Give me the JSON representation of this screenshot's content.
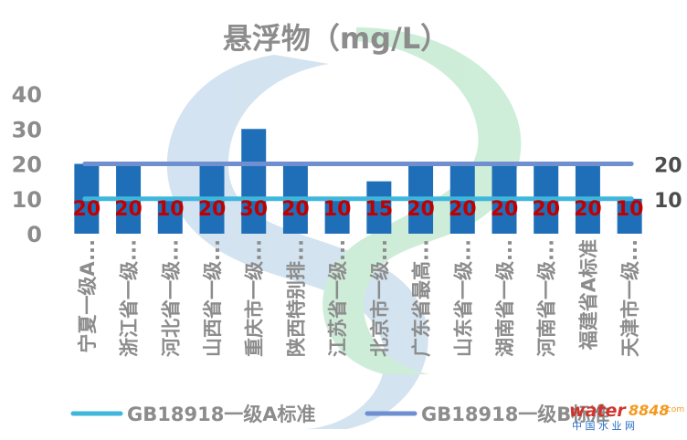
{
  "chart_data": {
    "type": "bar",
    "title": "悬浮物（mg/L）",
    "categories": [
      "宁夏一级A...",
      "浙江省一级...",
      "河北省一级...",
      "山西省一级...",
      "重庆市一级...",
      "陕西特别排...",
      "江苏省一级...",
      "北京市一级...",
      "广东省最高...",
      "山东省一级...",
      "湖南省一级...",
      "河南省一级...",
      "福建省A标准",
      "天津市一级..."
    ],
    "series": [
      {
        "values": [
          20,
          20,
          10,
          20,
          30,
          20,
          10,
          15,
          20,
          20,
          20,
          20,
          20,
          10
        ],
        "color": "#1f6fb8",
        "label_color": "#c00000"
      }
    ],
    "reference_lines": [
      {
        "name": "GB18918一级A标准",
        "value": 10,
        "label": "10",
        "color": "#3fb7dc"
      },
      {
        "name": "GB18918一级B标准",
        "value": 20,
        "label": "20",
        "color": "#6f8fd0"
      }
    ],
    "y_ticks": [
      "0",
      "10",
      "20",
      "30",
      "40"
    ],
    "ylim": [
      0,
      40
    ],
    "legend_position": "bottom",
    "grid": false
  },
  "watermark": {
    "brand_a": "water",
    "brand_b": "8848",
    "brand_suffix": ".com",
    "subtitle": "中 国 水 业 网"
  },
  "colors": {
    "axis_text": "#8c8c8c",
    "title": "#8c8c8c"
  }
}
